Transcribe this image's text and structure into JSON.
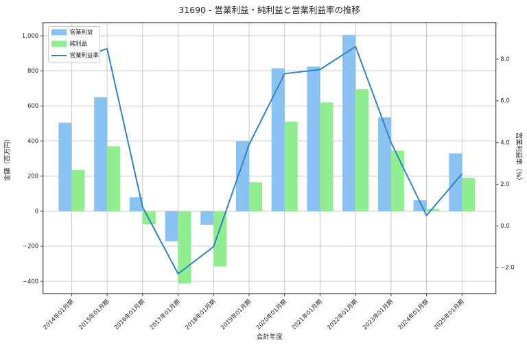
{
  "chart_data": {
    "type": "bar",
    "title": "31690 - 営業利益・純利益と営業利益率の推移",
    "xlabel": "会計年度",
    "ylabel_left": "金額（百万円）",
    "ylabel_right": "営業利益率（%）",
    "categories": [
      "2014年01月期",
      "2015年01月期",
      "2016年01月期",
      "2017年01月期",
      "2018年01月期",
      "2019年01月期",
      "2020年01月期",
      "2021年01月期",
      "2022年01月期",
      "2023年01月期",
      "2024年01月期",
      "2025年01月期"
    ],
    "series": [
      {
        "name": "営業利益",
        "type": "bar",
        "axis": "left",
        "color": "#8AC3F2",
        "values": [
          505,
          650,
          80,
          -172,
          -78,
          400,
          815,
          825,
          1005,
          535,
          63,
          330
        ]
      },
      {
        "name": "純利益",
        "type": "bar",
        "axis": "left",
        "color": "#90EE90",
        "values": [
          235,
          370,
          -75,
          -412,
          -315,
          165,
          510,
          620,
          695,
          345,
          13,
          190
        ]
      },
      {
        "name": "営業利益率",
        "type": "line",
        "axis": "right",
        "color": "#2F82C4",
        "values": [
          7.9,
          8.5,
          0.9,
          -2.3,
          -1.0,
          3.9,
          7.3,
          7.5,
          8.6,
          4.0,
          0.5,
          2.5
        ]
      }
    ],
    "left_axis": {
      "min": -470,
      "max": 1075,
      "ticks": [
        1000,
        800,
        600,
        400,
        200,
        0,
        -200,
        -400
      ],
      "tick_labels": [
        "1,000",
        "800",
        "600",
        "400",
        "200",
        "0",
        "−200",
        "−400"
      ]
    },
    "right_axis": {
      "min": -3.25,
      "max": 9.75,
      "ticks": [
        8.0,
        6.0,
        4.0,
        2.0,
        0.0,
        -2.0
      ],
      "tick_labels": [
        "8.0",
        "6.0",
        "4.0",
        "2.0",
        "0.0",
        "−2.0"
      ]
    },
    "grid": true,
    "legend": {
      "position": "upper-left",
      "items": [
        "営業利益",
        "純利益",
        "営業利益率"
      ]
    },
    "colors": {
      "grid": "#C8C8C8",
      "spine": "#3C3C3C",
      "text": "#1F1F1F",
      "background": "#FFFFFF"
    }
  }
}
